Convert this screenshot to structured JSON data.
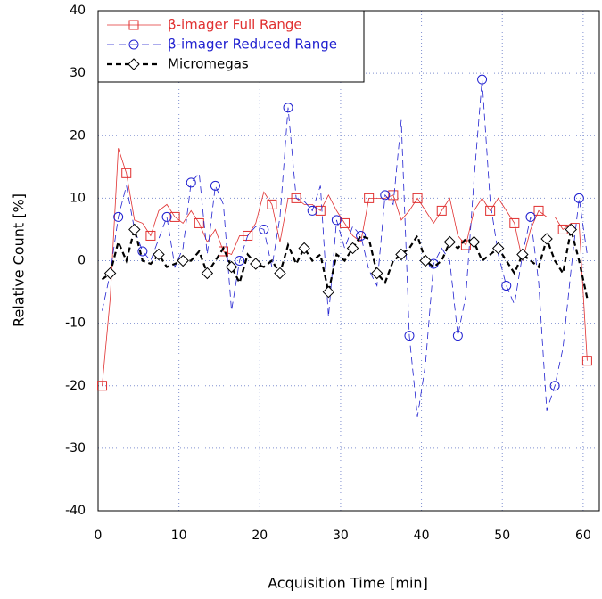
{
  "chart_data": {
    "type": "line",
    "xlabel": "Acquisition Time [min]",
    "ylabel": "Relative Count [%]",
    "x": [
      0.5,
      1.5,
      2.5,
      3.5,
      4.5,
      5.5,
      6.5,
      7.5,
      8.5,
      9.5,
      10.5,
      11.5,
      12.5,
      13.5,
      14.5,
      15.5,
      16.5,
      17.5,
      18.5,
      19.5,
      20.5,
      21.5,
      22.5,
      23.5,
      24.5,
      25.5,
      26.5,
      27.5,
      28.5,
      29.5,
      30.5,
      31.5,
      32.5,
      33.5,
      34.5,
      35.5,
      36.5,
      37.5,
      38.5,
      39.5,
      40.5,
      41.5,
      42.5,
      43.5,
      44.5,
      45.5,
      46.5,
      47.5,
      48.5,
      49.5,
      50.5,
      51.5,
      52.5,
      53.5,
      54.5,
      55.5,
      56.5,
      57.5,
      58.5,
      59.5,
      60.5
    ],
    "series": [
      {
        "name": "β-imager Full Range",
        "color": "#e03030",
        "marker": "square",
        "dash": "none",
        "width": 0.8,
        "values": [
          -20,
          -6,
          18,
          14,
          6.5,
          6,
          4,
          8,
          9,
          7,
          6,
          8,
          6,
          3,
          5,
          1.5,
          1,
          4,
          4,
          6,
          11,
          9,
          3,
          10,
          10,
          9,
          9,
          8,
          10.5,
          8,
          6,
          4,
          3,
          10,
          10,
          10,
          10.5,
          6.5,
          8,
          10,
          8,
          6,
          8,
          10,
          4,
          2.5,
          8,
          10,
          8,
          10,
          8,
          6,
          0,
          5,
          8,
          7,
          7,
          5,
          6,
          6,
          -16
        ]
      },
      {
        "name": "β-imager Reduced Range",
        "color": "#2020d0",
        "marker": "circle",
        "dash": "8 5",
        "width": 0.8,
        "values": [
          -8,
          -2,
          7,
          12,
          5,
          1.5,
          0,
          3.5,
          7,
          -1,
          2,
          12.5,
          14,
          1,
          12,
          9,
          -8,
          0,
          4,
          5.5,
          5,
          -1,
          7,
          24.5,
          10,
          9.5,
          8,
          12,
          -9,
          6.5,
          2,
          5.5,
          4,
          -1.5,
          -4,
          10.5,
          9,
          22.5,
          -12,
          -25,
          -16.5,
          -0.5,
          2,
          0,
          -12,
          -5.5,
          13,
          29,
          9.5,
          1,
          -4,
          -7,
          1,
          7,
          -3.5,
          -24,
          -20,
          -14,
          -1.5,
          10,
          1
        ]
      },
      {
        "name": "Micromegas",
        "color": "#000000",
        "marker": "diamond",
        "dash": "6 4",
        "width": 2.2,
        "values": [
          -3,
          -2,
          3,
          0,
          5,
          0,
          -0.5,
          1,
          -1,
          -0.5,
          0,
          0,
          1.5,
          -2,
          0,
          2,
          -1,
          -3.5,
          1,
          -0.5,
          -1,
          0,
          -2,
          2.5,
          -0.5,
          2,
          0,
          1,
          -5,
          1,
          0,
          2,
          4,
          3.5,
          -2,
          -3.5,
          0,
          1,
          2,
          4,
          0,
          -1,
          0,
          3,
          2,
          3.5,
          3,
          0,
          1,
          2,
          0,
          -2,
          1,
          0,
          -1,
          3.5,
          0,
          -2,
          5,
          0,
          -6
        ]
      }
    ],
    "xlim": [
      0,
      62
    ],
    "ylim": [
      -40,
      40
    ],
    "xticks": [
      0,
      10,
      20,
      30,
      40,
      50,
      60
    ],
    "yticks": [
      -40,
      -30,
      -20,
      -10,
      0,
      10,
      20,
      30,
      40
    ],
    "grid": true,
    "legend": "upper left"
  }
}
